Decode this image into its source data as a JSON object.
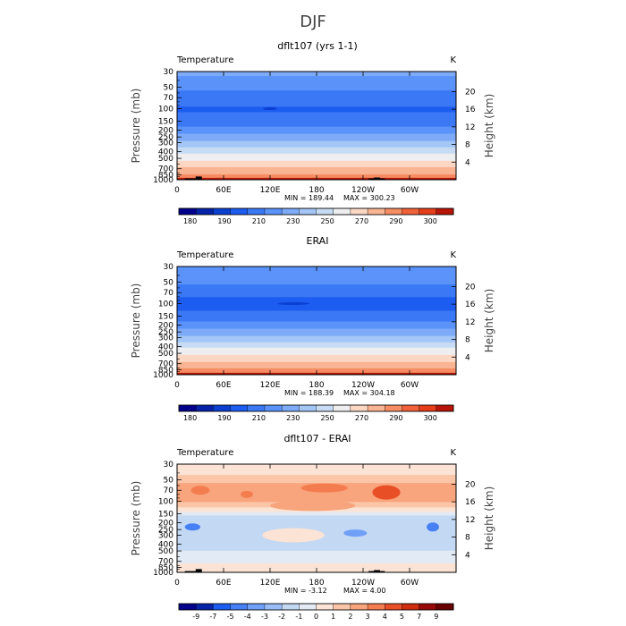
{
  "figure": {
    "main_title": "DJF"
  },
  "chart_data": [
    {
      "type": "heatmap",
      "title": "dflt107 (yrs 1-1)",
      "left_label": "Temperature",
      "units": "K",
      "ylabel": "Pressure (mb)",
      "y2label": "Height (km)",
      "xticks": [
        "0",
        "60E",
        "120E",
        "180",
        "120W",
        "60W"
      ],
      "xtick_lon": [
        0,
        60,
        120,
        180,
        240,
        300
      ],
      "xlim": [
        0,
        360
      ],
      "yticks": [
        "30",
        "50",
        "70",
        "100",
        "150",
        "200",
        "250",
        "300",
        "400",
        "500",
        "700",
        "850",
        "1000"
      ],
      "ytick_p": [
        30,
        50,
        70,
        100,
        150,
        200,
        250,
        300,
        400,
        500,
        700,
        850,
        1000
      ],
      "ylim": [
        30,
        1000
      ],
      "y2ticks": [
        "20",
        "16",
        "12",
        "8",
        "4"
      ],
      "y2tick_km": [
        20,
        16,
        12,
        8,
        4
      ],
      "min_label": "MIN = 189.44",
      "max_label": "MAX = 300.23",
      "colorbar_labels": [
        "180",
        "190",
        "210",
        "230",
        "250",
        "270",
        "290",
        "300"
      ],
      "colorbar_levels": [
        180,
        185,
        190,
        200,
        210,
        220,
        230,
        240,
        250,
        260,
        270,
        280,
        290,
        295,
        300
      ],
      "profile": {
        "p": [
          30,
          50,
          70,
          100,
          150,
          200,
          250,
          300,
          400,
          500,
          700,
          850,
          1000
        ],
        "value": [
          222,
          213,
          203,
          199,
          203,
          215,
          224,
          232,
          247,
          257,
          272,
          281,
          289
        ]
      },
      "min_blob_lon": 120,
      "min_blob_p": 100
    },
    {
      "type": "heatmap",
      "title": "ERAI",
      "left_label": "Temperature",
      "units": "K",
      "ylabel": "Pressure (mb)",
      "y2label": "Height (km)",
      "xticks": [
        "0",
        "60E",
        "120E",
        "180",
        "120W",
        "60W"
      ],
      "xtick_lon": [
        0,
        60,
        120,
        180,
        240,
        300
      ],
      "xlim": [
        0,
        360
      ],
      "yticks": [
        "30",
        "50",
        "70",
        "100",
        "150",
        "200",
        "250",
        "300",
        "400",
        "500",
        "700",
        "850",
        "1000"
      ],
      "ytick_p": [
        30,
        50,
        70,
        100,
        150,
        200,
        250,
        300,
        400,
        500,
        700,
        850,
        1000
      ],
      "ylim": [
        30,
        1000
      ],
      "y2ticks": [
        "20",
        "16",
        "12",
        "8",
        "4"
      ],
      "y2tick_km": [
        20,
        16,
        12,
        8,
        4
      ],
      "min_label": "MIN = 188.39",
      "max_label": "MAX = 304.18",
      "colorbar_labels": [
        "180",
        "190",
        "210",
        "230",
        "250",
        "270",
        "290",
        "300"
      ],
      "colorbar_levels": [
        180,
        185,
        190,
        200,
        210,
        220,
        230,
        240,
        250,
        260,
        270,
        280,
        290,
        295,
        300
      ],
      "profile": {
        "p": [
          30,
          50,
          70,
          100,
          150,
          200,
          250,
          300,
          400,
          500,
          700,
          850,
          1000
        ],
        "value": [
          220,
          212,
          202,
          197,
          203,
          215,
          225,
          233,
          248,
          258,
          273,
          282,
          291
        ]
      },
      "min_blob_lon": 150,
      "min_blob_p": 100
    },
    {
      "type": "heatmap",
      "title": "dflt107 - ERAI",
      "left_label": "Temperature",
      "units": "K",
      "ylabel": "Pressure (mb)",
      "y2label": "Height (km)",
      "xticks": [
        "0",
        "60E",
        "120E",
        "180",
        "120W",
        "60W"
      ],
      "xtick_lon": [
        0,
        60,
        120,
        180,
        240,
        300
      ],
      "xlim": [
        0,
        360
      ],
      "yticks": [
        "30",
        "50",
        "70",
        "100",
        "150",
        "200",
        "250",
        "300",
        "400",
        "500",
        "700",
        "850",
        "1000"
      ],
      "ytick_p": [
        30,
        50,
        70,
        100,
        150,
        200,
        250,
        300,
        400,
        500,
        700,
        850,
        1000
      ],
      "ylim": [
        30,
        1000
      ],
      "y2ticks": [
        "20",
        "16",
        "12",
        "8",
        "4"
      ],
      "y2tick_km": [
        20,
        16,
        12,
        8,
        4
      ],
      "min_label": "MIN = -3.12",
      "max_label": "MAX = 4.00",
      "colorbar_labels": [
        "-9",
        "-7",
        "-5",
        "-4",
        "-3",
        "-2",
        "-1",
        "0",
        "1",
        "2",
        "3",
        "4",
        "5",
        "7",
        "9"
      ],
      "colorbar_levels": [
        -9,
        -7,
        -5,
        -4,
        -3,
        -2,
        -1,
        0,
        1,
        2,
        3,
        4,
        5,
        7,
        9
      ],
      "profile": {
        "p": [
          30,
          50,
          60,
          70,
          100,
          130,
          170,
          250,
          400,
          600,
          800,
          1000
        ],
        "value": [
          0.2,
          1.5,
          2.5,
          2.8,
          2.2,
          0.5,
          -1.5,
          -1.5,
          -1.5,
          -0.5,
          0.2,
          0.3
        ]
      }
    }
  ],
  "colors": {
    "temperature_fills": [
      "#00008c",
      "#0522a8",
      "#0a3fd0",
      "#1d5cf0",
      "#3a78f5",
      "#5a93fa",
      "#7eabf8",
      "#a3c6f6",
      "#c7dcf4",
      "#eeeef0",
      "#fbd7c4",
      "#f9b493",
      "#f78d62",
      "#f2623a",
      "#e63e1a",
      "#b81508"
    ],
    "difference_fills": [
      "#00008c",
      "#0522a8",
      "#1d5cf0",
      "#4680f4",
      "#6f9ff6",
      "#99bdf6",
      "#c3d8f3",
      "#e2eaf5",
      "#fbe3d5",
      "#fbc6a8",
      "#f8a47c",
      "#f47d50",
      "#e94f26",
      "#d02d0e",
      "#990808",
      "#680000"
    ],
    "topography": "#000000"
  }
}
